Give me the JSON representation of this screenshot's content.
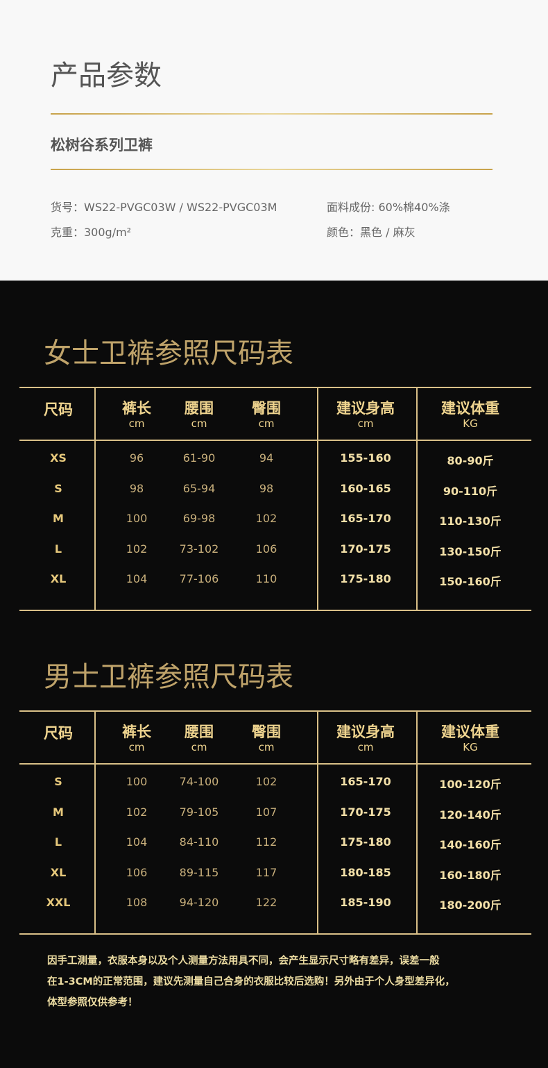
{
  "header": {
    "title": "产品参数",
    "product_name": "松树谷系列卫裤",
    "specs": [
      "货号：WS22-PVGC03W / WS22-PVGC03M",
      "面料成份: 60%棉40%涤",
      "克重：300g/m²",
      "颜色：黑色 / 麻灰"
    ]
  },
  "tables": [
    {
      "title": "女士卫裤参照尺码表",
      "columns": [
        {
          "name": "尺码"
        },
        {
          "name": "裤长",
          "unit": "cm"
        },
        {
          "name": "腰围",
          "unit": "cm"
        },
        {
          "name": "臀围",
          "unit": "cm"
        },
        {
          "name": "建议身高",
          "unit": "cm"
        },
        {
          "name": "建议体重",
          "unit": "KG"
        }
      ],
      "rows": [
        [
          "XS",
          "96",
          "61-90",
          "94",
          "155-160",
          "80-90斤"
        ],
        [
          "S",
          "98",
          "65-94",
          "98",
          "160-165",
          "90-110斤"
        ],
        [
          "M",
          "100",
          "69-98",
          "102",
          "165-170",
          "110-130斤"
        ],
        [
          "L",
          "102",
          "73-102",
          "106",
          "170-175",
          "130-150斤"
        ],
        [
          "XL",
          "104",
          "77-106",
          "110",
          "175-180",
          "150-160斤"
        ]
      ]
    },
    {
      "title": "男士卫裤参照尺码表",
      "columns": [
        {
          "name": "尺码"
        },
        {
          "name": "裤长",
          "unit": "cm"
        },
        {
          "name": "腰围",
          "unit": "cm"
        },
        {
          "name": "臀围",
          "unit": "cm"
        },
        {
          "name": "建议身高",
          "unit": "cm"
        },
        {
          "name": "建议体重",
          "unit": "KG"
        }
      ],
      "rows": [
        [
          "S",
          "100",
          "74-100",
          "102",
          "165-170",
          "100-120斤"
        ],
        [
          "M",
          "102",
          "79-105",
          "107",
          "170-175",
          "120-140斤"
        ],
        [
          "L",
          "104",
          "84-110",
          "112",
          "175-180",
          "140-160斤"
        ],
        [
          "XL",
          "106",
          "89-115",
          "117",
          "180-185",
          "160-180斤"
        ],
        [
          "XXL",
          "108",
          "94-120",
          "122",
          "185-190",
          "180-200斤"
        ]
      ]
    }
  ],
  "note": [
    "因手工测量，衣服本身以及个人测量方法用具不同，会产生显示尺寸略有差异，误差一般",
    "在1-3CM的正常范围，建议先测量自己合身的衣服比较后选购！另外由于个人身型差异化，",
    "体型参照仅供参考！"
  ]
}
